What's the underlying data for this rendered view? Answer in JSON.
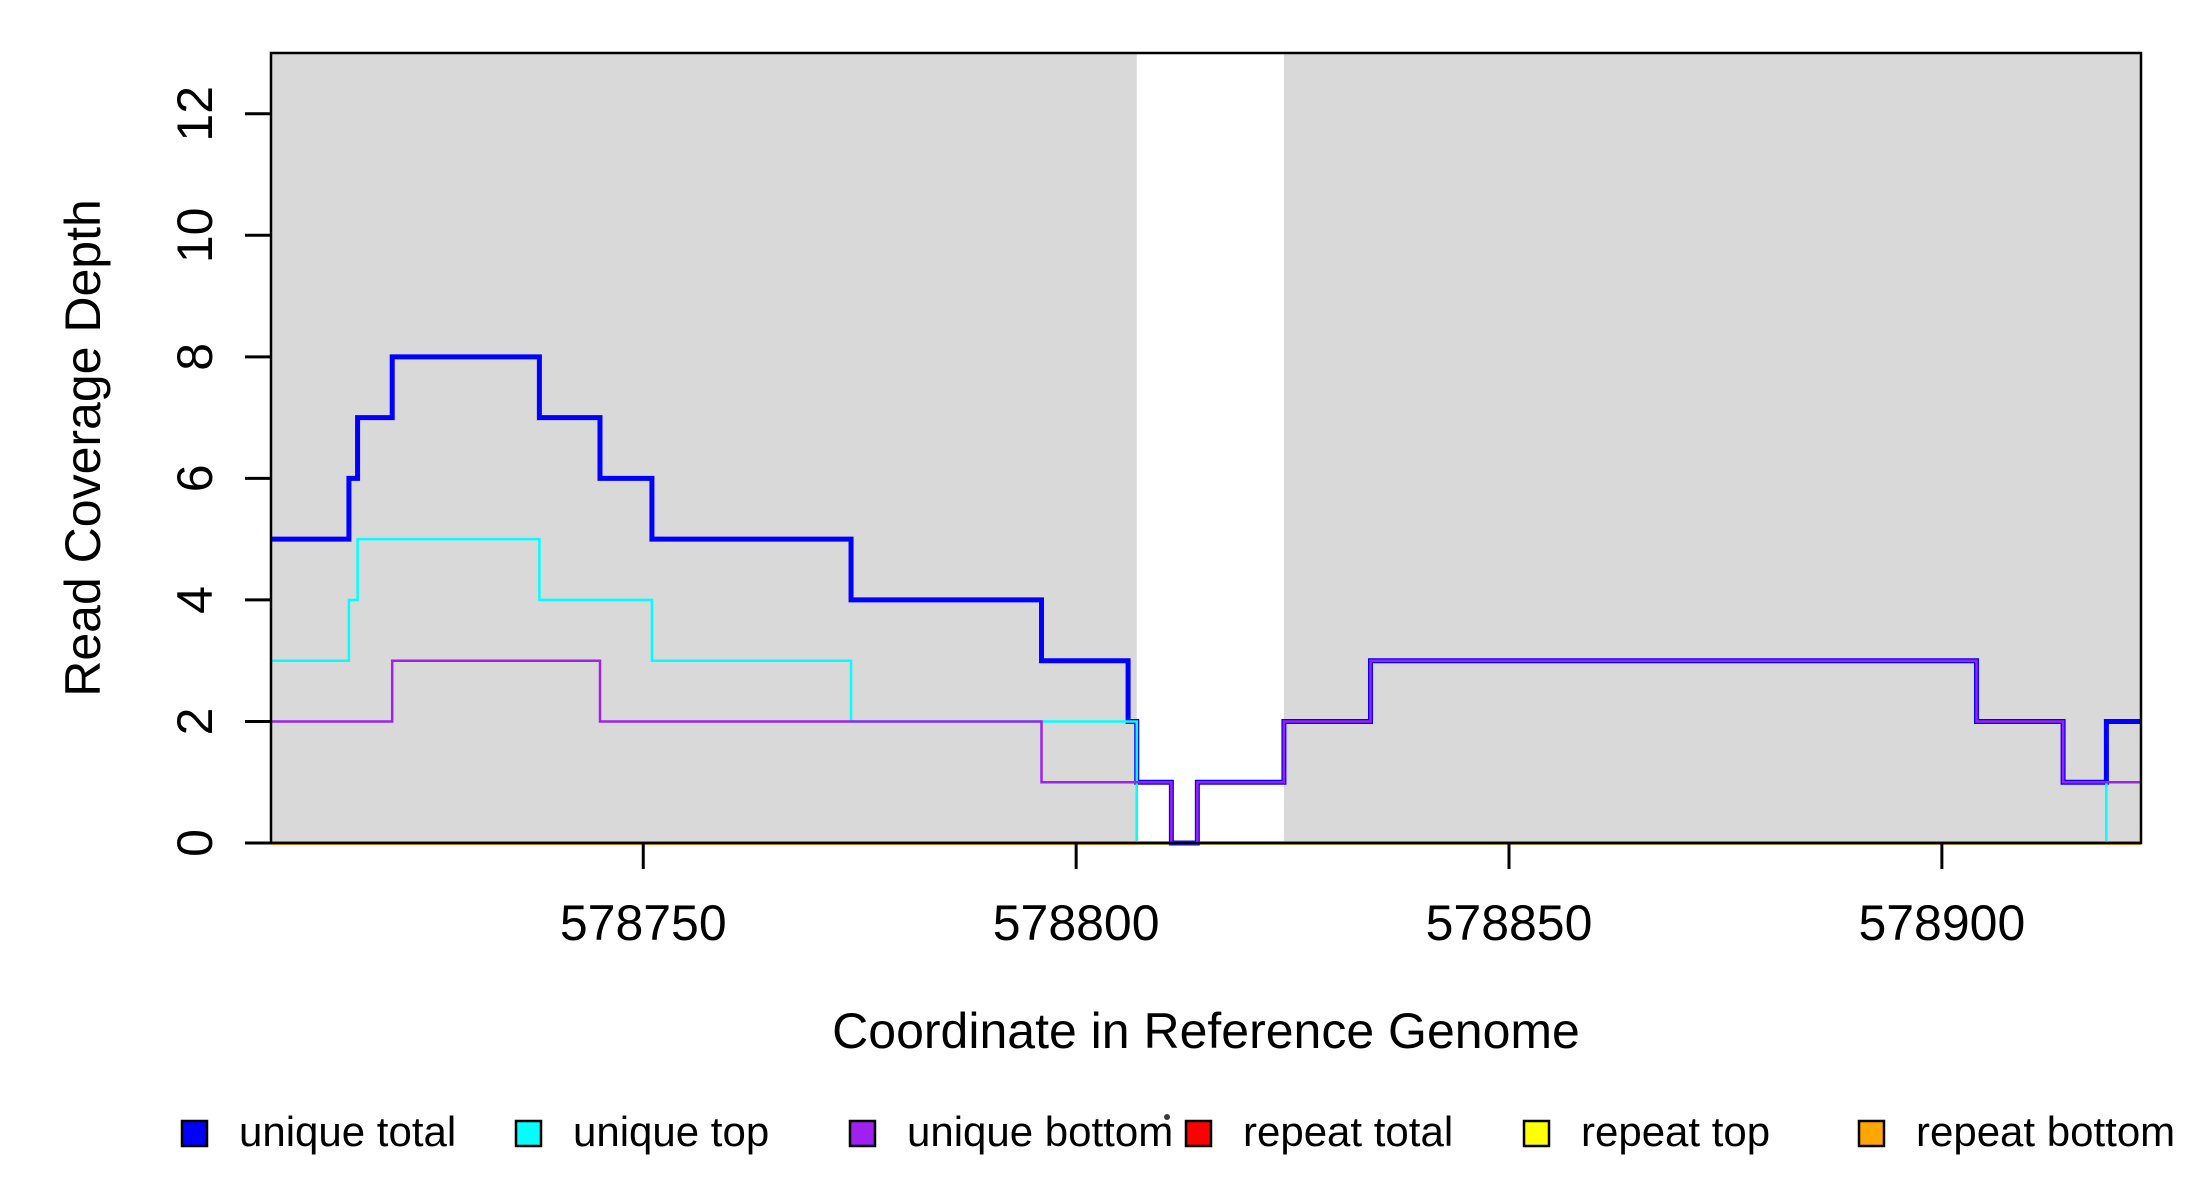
{
  "chart_data": {
    "type": "line",
    "subtype": "step-coverage-plot",
    "title": "",
    "xlabel": "Coordinate in Reference Genome",
    "ylabel": "Read Coverage Depth",
    "xlim": [
      578707,
      578923
    ],
    "ylim": [
      0,
      13
    ],
    "xticks": [
      578750,
      578800,
      578850,
      578900
    ],
    "yticks": [
      0,
      2,
      4,
      6,
      8,
      10,
      12
    ],
    "grid": false,
    "plot_background": "#ffffff",
    "shaded_region_color": "#D9D9D9",
    "shaded_regions": [
      {
        "from": 578707,
        "to": 578807
      },
      {
        "from": 578824,
        "to": 578923
      }
    ],
    "series": [
      {
        "name": "repeat total",
        "color": "#FF0000",
        "lwd": 3.5,
        "steps": [
          [
            578707,
            0
          ]
        ],
        "end": 578923
      },
      {
        "name": "repeat top",
        "color": "#FFFF00",
        "lwd": 3,
        "steps": [
          [
            578707,
            0
          ]
        ],
        "end": 578923
      },
      {
        "name": "repeat bottom",
        "color": "#FFA500",
        "lwd": 3.5,
        "steps": [
          [
            578707,
            0
          ]
        ],
        "end": 578923
      },
      {
        "name": "unique total",
        "color": "#0000FF",
        "lwd": 5,
        "steps": [
          [
            578707,
            5
          ],
          [
            578716,
            6
          ],
          [
            578717,
            7
          ],
          [
            578721,
            8
          ],
          [
            578738,
            7
          ],
          [
            578745,
            6
          ],
          [
            578751,
            5
          ],
          [
            578774,
            4
          ],
          [
            578796,
            3
          ],
          [
            578806,
            2
          ],
          [
            578807,
            1
          ],
          [
            578811,
            0
          ],
          [
            578814,
            1
          ],
          [
            578824,
            2
          ],
          [
            578834,
            3
          ],
          [
            578904,
            2
          ],
          [
            578914,
            1
          ],
          [
            578919,
            2
          ]
        ],
        "end": 578923
      },
      {
        "name": "unique top",
        "color": "#00FFFF",
        "lwd": 2.5,
        "steps": [
          [
            578707,
            3
          ],
          [
            578716,
            4
          ],
          [
            578717,
            5
          ],
          [
            578738,
            4
          ],
          [
            578751,
            3
          ],
          [
            578774,
            2
          ],
          [
            578807,
            0
          ],
          [
            578919,
            1
          ]
        ],
        "end": 578923
      },
      {
        "name": "unique bottom",
        "color": "#A020F0",
        "lwd": 2.5,
        "steps": [
          [
            578707,
            2
          ],
          [
            578721,
            3
          ],
          [
            578745,
            2
          ],
          [
            578796,
            1
          ],
          [
            578811,
            0
          ],
          [
            578814,
            1
          ],
          [
            578824,
            2
          ],
          [
            578834,
            3
          ],
          [
            578904,
            2
          ],
          [
            578914,
            1
          ]
        ],
        "end": 578923
      }
    ],
    "legend": {
      "position": "bottom",
      "entries": [
        {
          "label": "unique total",
          "color": "#0000FF"
        },
        {
          "label": "unique top",
          "color": "#00FFFF"
        },
        {
          "label": "unique bottom",
          "color": "#A020F0"
        },
        {
          "label": "repeat total",
          "color": "#FF0000"
        },
        {
          "label": "repeat top",
          "color": "#FFFF00"
        },
        {
          "label": "repeat bottom",
          "color": "#FFA500"
        }
      ]
    }
  }
}
